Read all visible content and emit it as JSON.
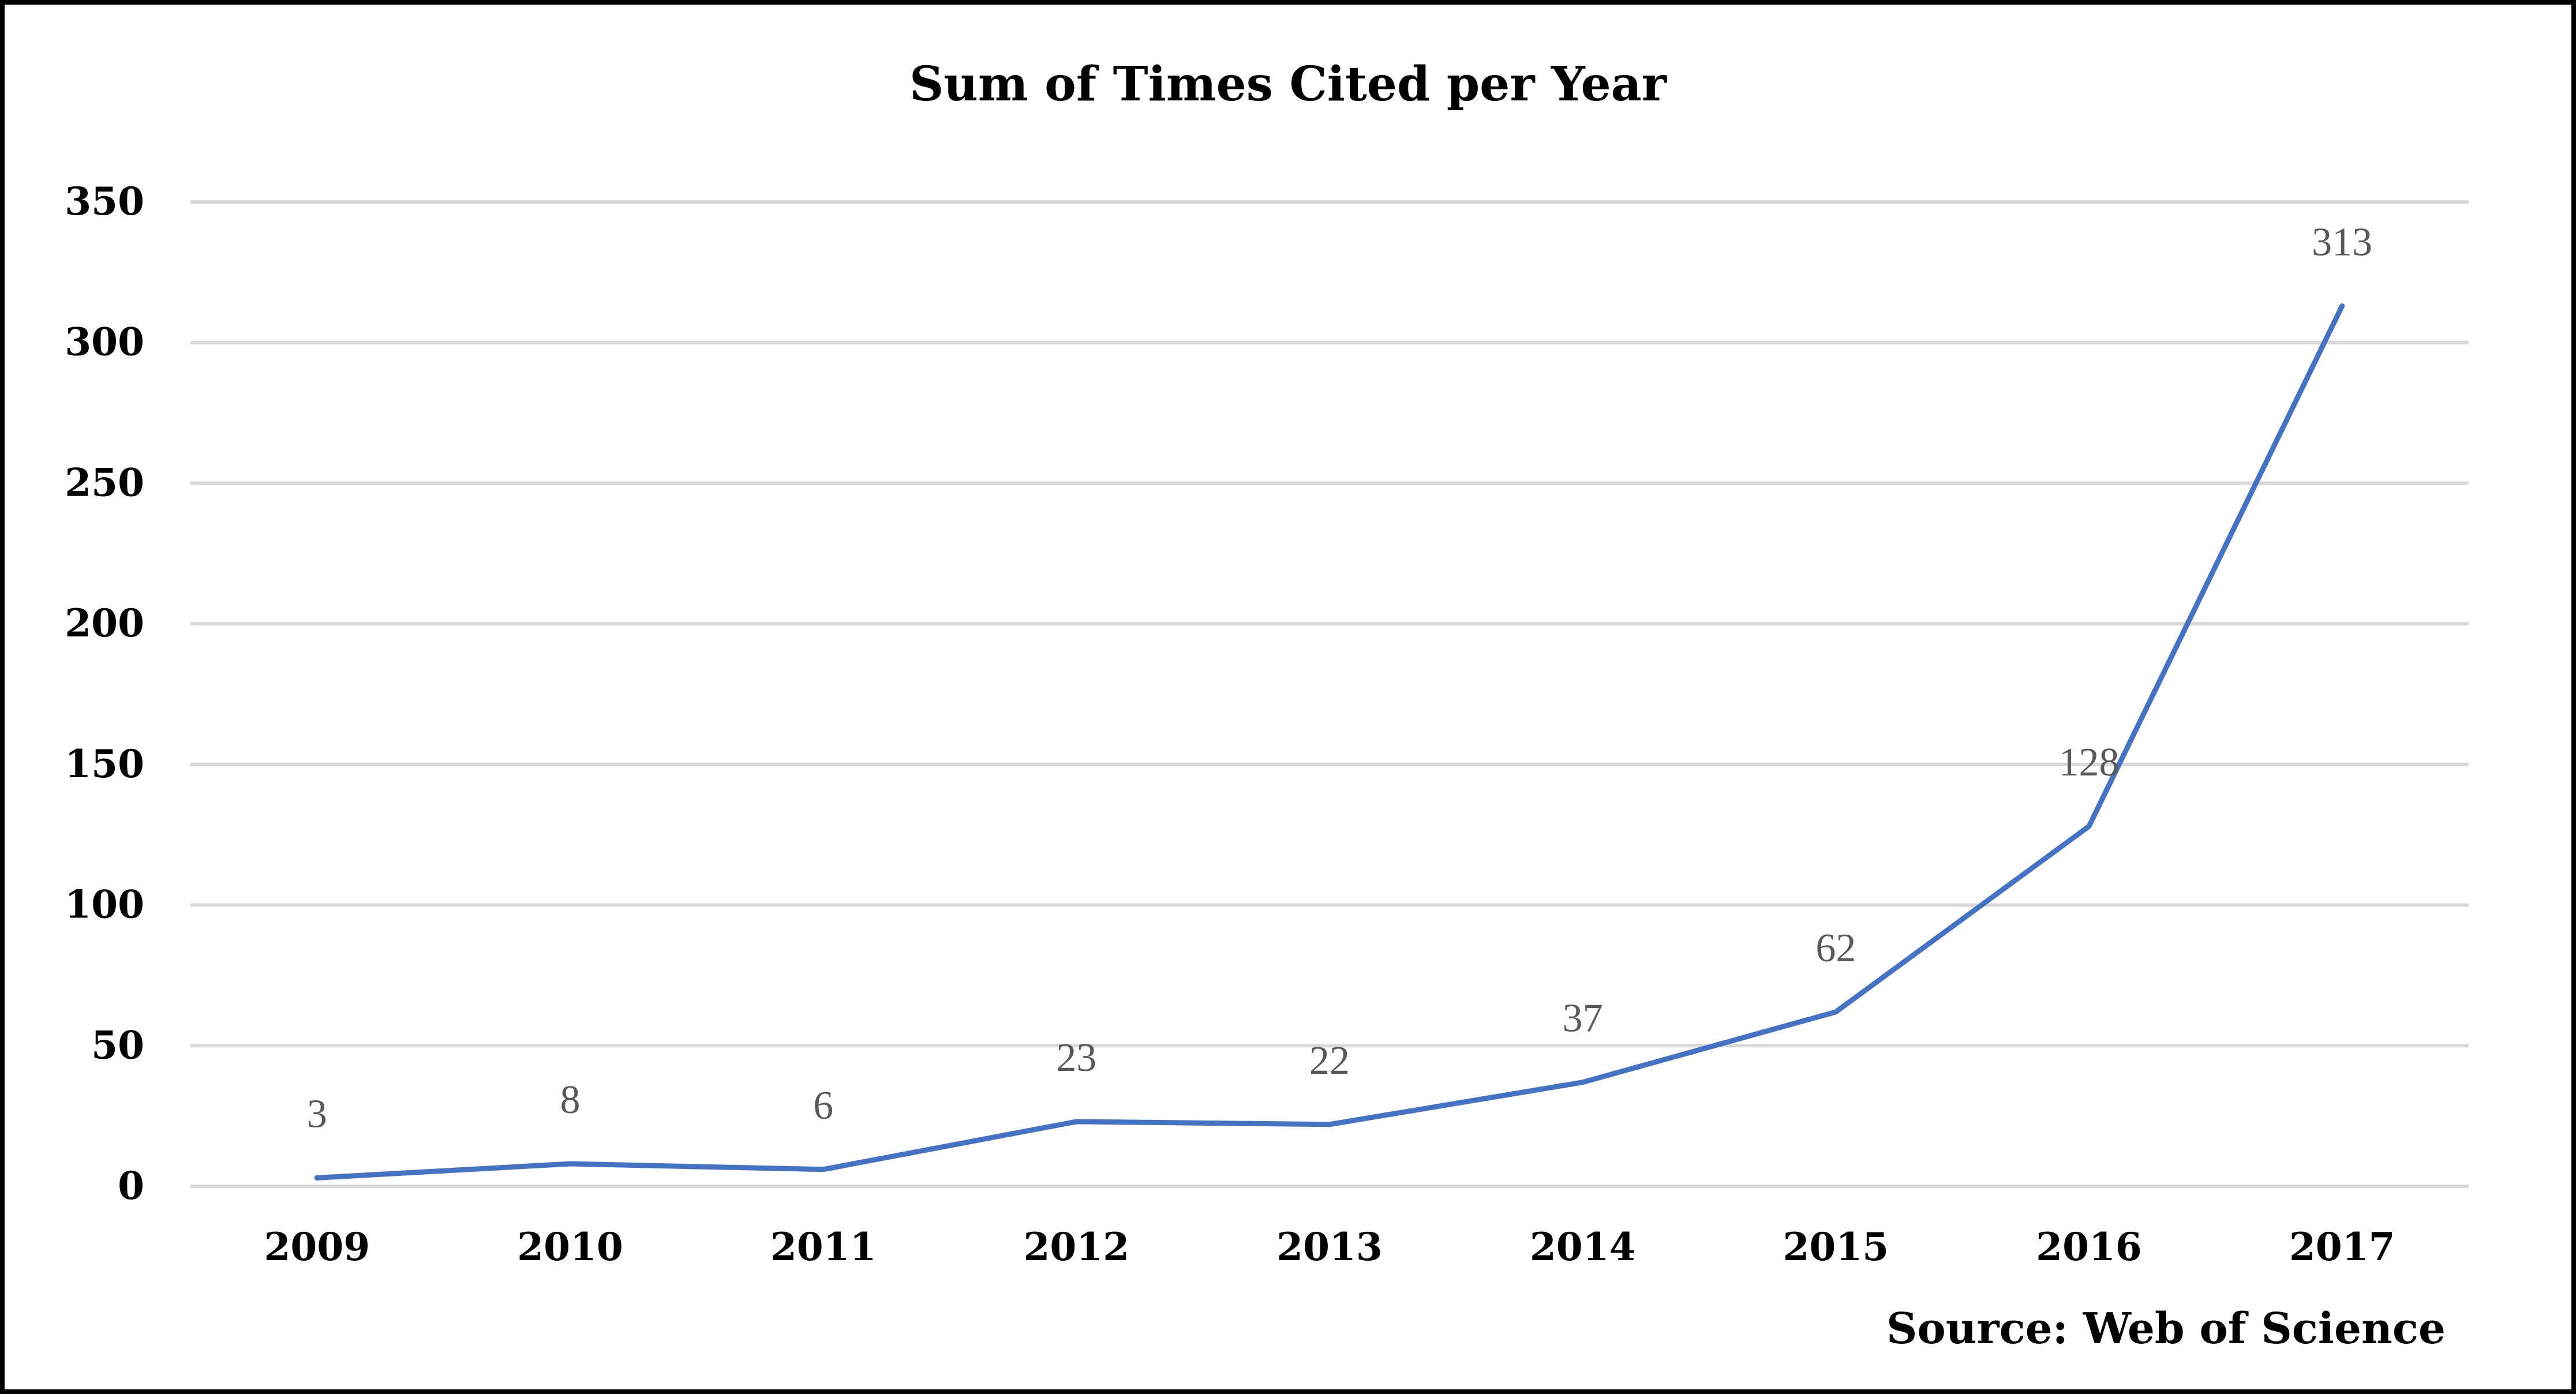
{
  "chart_data": {
    "type": "line",
    "title": "Sum of Times Cited per Year",
    "xlabel": "",
    "ylabel": "",
    "categories": [
      "2009",
      "2010",
      "2011",
      "2012",
      "2013",
      "2014",
      "2015",
      "2016",
      "2017"
    ],
    "series": [
      {
        "values": [
          3,
          8,
          6,
          23,
          22,
          37,
          62,
          128,
          313
        ],
        "color": "#4472c4"
      }
    ],
    "ylim": [
      0,
      350
    ],
    "yticks": [
      0,
      50,
      100,
      150,
      200,
      250,
      300,
      350
    ],
    "grid": true,
    "data_labels": true,
    "legend": "none",
    "source_note": "Source: Web of Science"
  }
}
